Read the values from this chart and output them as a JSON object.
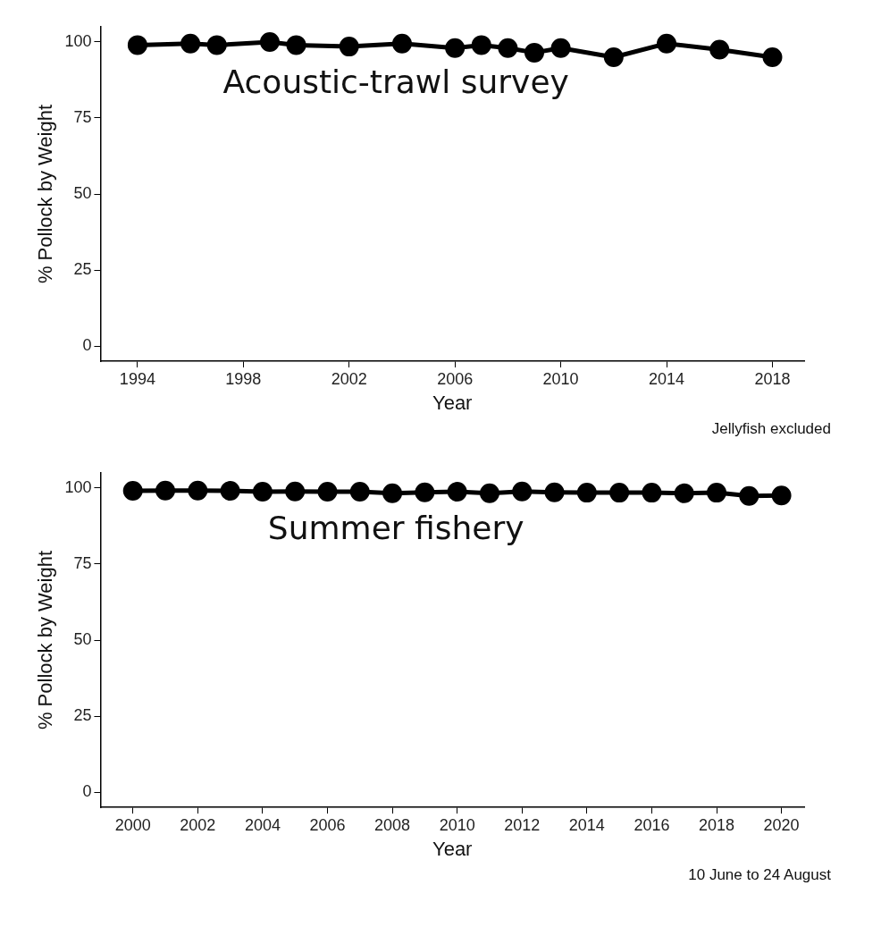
{
  "chart_data": [
    {
      "type": "line",
      "xlabel": "Year",
      "ylabel": "% Pollock by Weight",
      "x": [
        1994,
        1996,
        1997,
        1999,
        2000,
        2002,
        2004,
        2006,
        2007,
        2008,
        2009,
        2010,
        2012,
        2014,
        2016,
        2018
      ],
      "series": [
        {
          "color": "#000000",
          "values": [
            99,
            99.5,
            99,
            100,
            99,
            98.5,
            99.5,
            98,
            99,
            98,
            96.5,
            98,
            95,
            99.5,
            97.5,
            95
          ]
        }
      ],
      "xlim": [
        1992.6,
        2019.2
      ],
      "xticks": [
        1994,
        1998,
        2002,
        2006,
        2010,
        2014,
        2018
      ],
      "ylim": [
        -5,
        105
      ],
      "yticks": [
        0,
        25,
        50,
        75,
        100
      ],
      "grid": false,
      "legend": false,
      "marker": "circle",
      "line_style": "solid",
      "annotations": [
        "Acoustic-trawl survey",
        "Jellyfish excluded"
      ]
    },
    {
      "type": "line",
      "xlabel": "Year",
      "ylabel": "% Pollock by Weight",
      "x": [
        2000,
        2001,
        2002,
        2003,
        2004,
        2005,
        2006,
        2007,
        2008,
        2009,
        2010,
        2011,
        2012,
        2013,
        2014,
        2015,
        2016,
        2017,
        2018,
        2019,
        2020
      ],
      "series": [
        {
          "color": "#000000",
          "values": [
            99.1,
            99.2,
            99.2,
            99.1,
            98.8,
            98.9,
            98.8,
            98.8,
            98.3,
            98.6,
            98.8,
            98.3,
            98.9,
            98.6,
            98.5,
            98.5,
            98.5,
            98.3,
            98.5,
            97.4,
            97.6
          ]
        }
      ],
      "xlim": [
        1999,
        2020.7
      ],
      "xticks": [
        2000,
        2002,
        2004,
        2006,
        2008,
        2010,
        2012,
        2014,
        2016,
        2018,
        2020
      ],
      "ylim": [
        -5,
        105
      ],
      "yticks": [
        0,
        25,
        50,
        75,
        100
      ],
      "grid": false,
      "legend": false,
      "marker": "circle",
      "line_style": "solid",
      "annotations": [
        "Summer fishery",
        "10 June to 24 August"
      ]
    }
  ]
}
